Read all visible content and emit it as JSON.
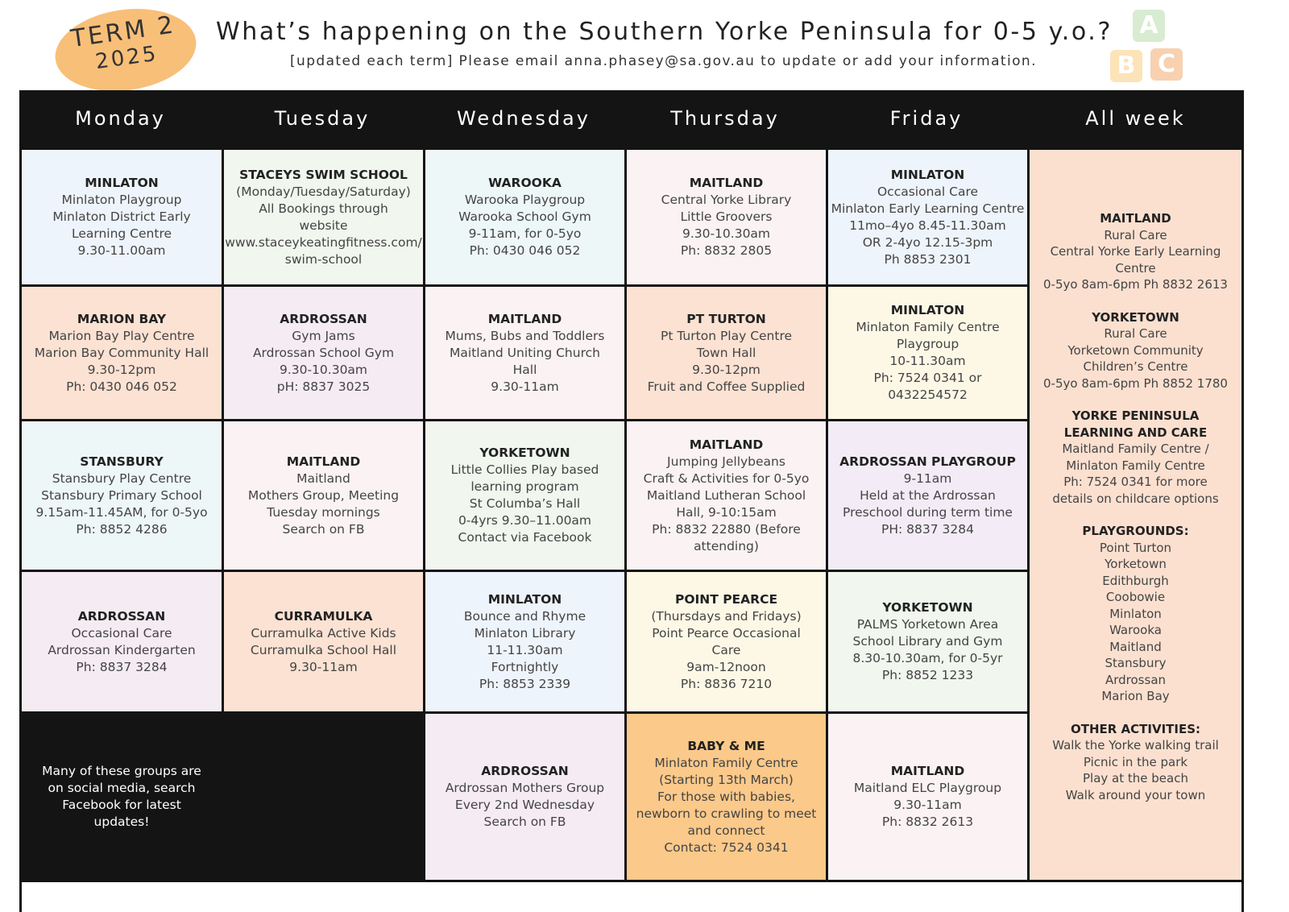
{
  "header": {
    "badge": {
      "term": "TERM 2",
      "year": "2025"
    },
    "title": "What’s happening on the Southern Yorke Peninsula for 0-5 y.o.?",
    "subtitle": "[updated each term] Please email anna.phasey@sa.gov.au to update or add your information.",
    "logo": [
      "A",
      "B",
      "C"
    ]
  },
  "table": {
    "days": [
      "Monday",
      "Tuesday",
      "Wednesday",
      "Thursday",
      "Friday",
      "All week"
    ],
    "rows": [
      [
        {
          "title": "MINLATON",
          "lines": [
            "Minlaton Playgroup",
            "Minlaton District Early",
            "Learning Centre",
            "9.30-11.00am"
          ],
          "background": "#eef4fb"
        },
        {
          "title": "STACEYS SWIM SCHOOL",
          "lines": [
            "(Monday/Tuesday/Saturday)",
            "All Bookings through",
            "website",
            "www.staceykeatingfitness.com/",
            "swim-school"
          ],
          "background": "#f1f6ee"
        },
        {
          "title": "WAROOKA",
          "lines": [
            "Warooka Playgroup",
            "Warooka School Gym",
            "9-11am, for 0-5yo",
            "Ph: 0430 046 052"
          ],
          "background": "#eef7f7"
        },
        {
          "title": "MAITLAND",
          "lines": [
            "Central Yorke Library",
            "Little Groovers",
            "9.30-10.30am",
            "Ph: 8832 2805"
          ],
          "background": "#fbf3f3"
        },
        {
          "title": "MINLATON",
          "lines": [
            "Occasional Care",
            "Minlaton Early Learning Centre",
            "11mo–4yo 8.45-11.30am",
            "OR 2-4yo 12.15-3pm",
            "Ph 8853 2301"
          ],
          "background": "#eef4fb"
        }
      ],
      [
        {
          "title": "MARION BAY",
          "lines": [
            "Marion Bay Play Centre",
            "Marion Bay Community Hall",
            "9.30-12pm",
            "Ph: 0430 046 052"
          ],
          "background": "#fbe2d3"
        },
        {
          "title": "ARDROSSAN",
          "lines": [
            "Gym Jams",
            "Ardrossan School Gym",
            "9.30-10.30am",
            "pH: 8837 3025"
          ],
          "background": "#f5ecf3"
        },
        {
          "title": "MAITLAND",
          "lines": [
            "Mums, Bubs and Toddlers",
            "Maitland Uniting Church",
            "Hall",
            "9.30-11am"
          ],
          "background": "#fbf3f3"
        },
        {
          "title": "PT TURTON",
          "lines": [
            "Pt Turton Play Centre",
            "Town Hall",
            "9.30-12pm",
            "Fruit and Coffee Supplied"
          ],
          "background": "#fbe2d3"
        },
        {
          "title": "MINLATON",
          "lines": [
            "Minlaton Family Centre",
            "Playgroup",
            "10-11.30am",
            "Ph: 7524 0341 or",
            "0432254572"
          ],
          "background": "#fdf8e6"
        }
      ],
      [
        {
          "title": "STANSBURY",
          "lines": [
            "Stansbury Play Centre",
            "Stansbury Primary School",
            "9.15am-11.45AM, for 0-5yo",
            "Ph: 8852 4286"
          ],
          "background": "#eef7f7"
        },
        {
          "title": "MAITLAND",
          "lines": [
            "Maitland",
            "Mothers Group, Meeting",
            "Tuesday mornings",
            "Search on FB"
          ],
          "background": "#fbf3f3"
        },
        {
          "title": "YORKETOWN",
          "lines": [
            "Little Collies Play based",
            "learning program",
            "St Columba’s Hall",
            "0-4yrs 9.30–11.00am",
            "Contact via Facebook"
          ],
          "background": "#f1f6ee"
        },
        {
          "title": "MAITLAND",
          "lines": [
            "Jumping Jellybeans",
            "Craft & Activities for 0-5yo",
            "Maitland Lutheran School",
            "Hall, 9-10:15am",
            "Ph: 8832 22880 (Before",
            "attending)"
          ],
          "background": "#fbf3f3"
        },
        {
          "title": "ARDROSSAN PLAYGROUP",
          "lines": [
            "9-11am",
            "Held at the Ardrossan",
            "Preschool during term time",
            "PH: 8837 3284"
          ],
          "background": "#f3ecf6"
        }
      ],
      [
        {
          "title": "ARDROSSAN",
          "lines": [
            "Occasional Care",
            "Ardrossan Kindergarten",
            "Ph: 8837 3284"
          ],
          "background": "#f5ecf3"
        },
        {
          "title": "CURRAMULKA",
          "lines": [
            "Curramulka Active Kids",
            "Curramulka School Hall",
            "9.30-11am"
          ],
          "background": "#fbe2d3"
        },
        {
          "title": "MINLATON",
          "lines": [
            "Bounce and Rhyme",
            "Minlaton Library",
            "11-11.30am",
            "Fortnightly",
            "Ph: 8853 2339"
          ],
          "background": "#eef4fb"
        },
        {
          "title": "POINT PEARCE",
          "lines": [
            "(Thursdays and Fridays)",
            "Point Pearce Occasional",
            "Care",
            "9am-12noon",
            "Ph: 8836 7210"
          ],
          "background": "#fdf8e6"
        },
        {
          "title": "YORKETOWN",
          "lines": [
            "PALMS Yorketown Area",
            "School Library and Gym",
            "8.30-10.30am, for 0-5yr",
            "Ph: 8852 1233"
          ],
          "background": "#f1f6ee"
        }
      ],
      [
        {
          "lines": [
            "Many of these groups are",
            "on social media, search",
            "Facebook for latest",
            "updates!"
          ],
          "background": "#141414"
        },
        {
          "background": "#141414"
        },
        {
          "title": "ARDROSSAN",
          "lines": [
            "Ardrossan Mothers Group",
            "Every 2nd Wednesday",
            "Search on FB"
          ],
          "background": "#f5ecf3"
        },
        {
          "title": "BABY & ME",
          "lines": [
            "Minlaton Family Centre",
            "(Starting 13th March)",
            "For those with babies,",
            "newborn to crawling to meet",
            "and connect",
            "Contact: 7524 0341"
          ],
          "background": "#fbc98a"
        },
        {
          "title": "MAITLAND",
          "lines": [
            "Maitland ELC Playgroup",
            "9.30-11am",
            "Ph: 8832 2613"
          ],
          "background": "#fbf3f3"
        }
      ]
    ],
    "all_week": [
      {
        "title": "MAITLAND",
        "lines": [
          "Rural Care",
          "Central Yorke Early Learning",
          "Centre",
          "0-5yo 8am-6pm Ph 8832 2613"
        ]
      },
      {
        "title": "YORKETOWN",
        "lines": [
          "Rural Care",
          "Yorketown Community",
          "Children’s Centre",
          "0-5yo 8am-6pm Ph 8852 1780"
        ]
      },
      {
        "title": "YORKE PENINSULA LEARNING AND CARE",
        "lines": [
          "Maitland Family Centre /",
          "Minlaton Family Centre",
          "Ph: 7524 0341 for more",
          "details on childcare options"
        ]
      },
      {
        "title": "PLAYGROUNDS:",
        "lines": [
          "Point Turton",
          "Yorketown",
          "Edithburgh",
          "Coobowie",
          "Minlaton",
          "Warooka",
          "Maitland",
          "Stansbury",
          "Ardrossan",
          "Marion Bay"
        ]
      },
      {
        "title": "OTHER ACTIVITIES:",
        "lines": [
          "Walk the Yorke walking trail",
          "Picnic in the park",
          "Play at the beach",
          "Walk around your town"
        ]
      }
    ],
    "all_week_background": "#fbe0d0"
  }
}
